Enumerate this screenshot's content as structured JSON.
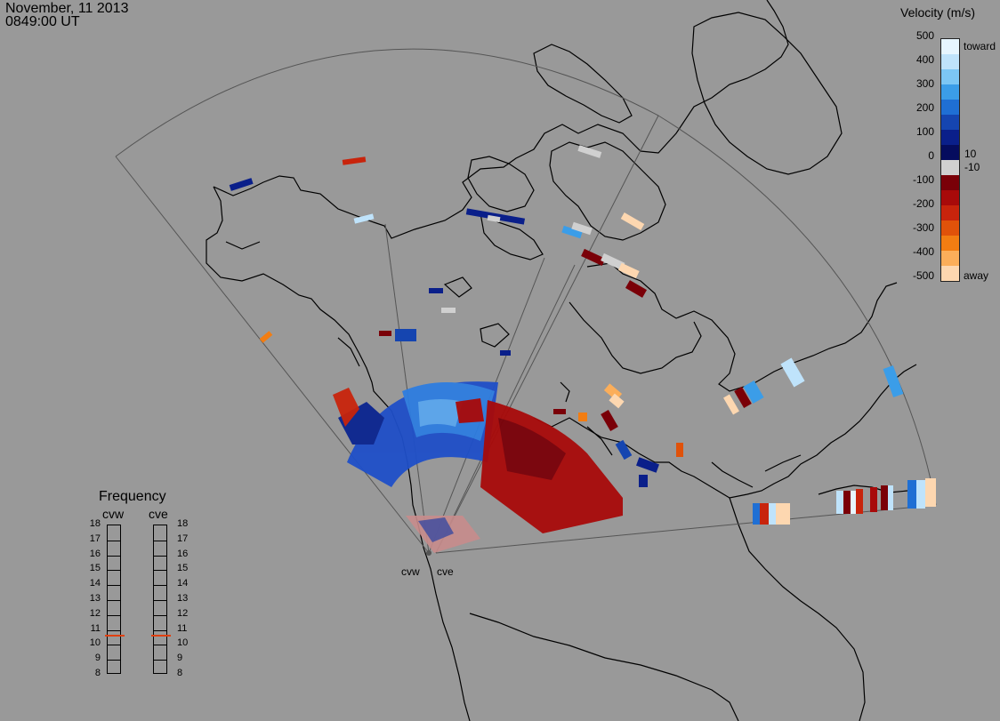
{
  "header": {
    "date": "November, 11 2013",
    "time": "0849:00 UT"
  },
  "colorbar": {
    "title": "Velocity (m/s)",
    "ticks": [
      "500",
      "400",
      "300",
      "200",
      "100",
      "0",
      "-100",
      "-200",
      "-300",
      "-400",
      "-500"
    ],
    "near_zero_pos": "10",
    "near_zero_neg": "-10",
    "toward_label": "toward",
    "away_label": "away",
    "colors": [
      "#e7f6ff",
      "#bfe3fb",
      "#7cc6f4",
      "#3b9de8",
      "#1f6fd4",
      "#1545b0",
      "#0a1f8a",
      "#050c5e",
      "#d0d0d0",
      "#7a0008",
      "#a80a0a",
      "#c8240c",
      "#e0520a",
      "#f27d12",
      "#fbae5a",
      "#fdd7b0"
    ]
  },
  "frequency": {
    "title": "Frequency",
    "left_radar": "cvw",
    "right_radar": "cve",
    "ticks": [
      "18",
      "17",
      "16",
      "15",
      "14",
      "13",
      "12",
      "11",
      "10",
      "9",
      "8"
    ],
    "cvw_mhz": 10.6,
    "cve_mhz": 10.6,
    "marker_color": "#e04010"
  },
  "radars": {
    "west": "cvw",
    "east": "cve"
  }
}
